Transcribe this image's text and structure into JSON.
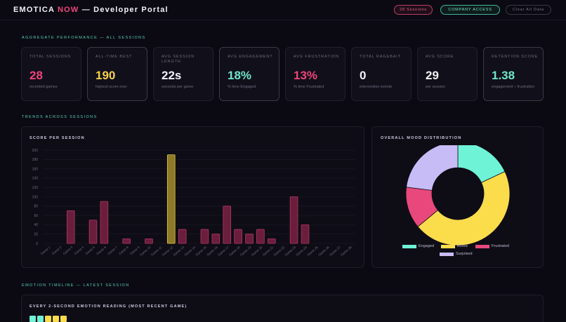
{
  "header": {
    "brand_prefix": "EMOTICA",
    "brand_highlight": "NOW",
    "brand_suffix": " — Developer Portal",
    "sessions_pill": "28 Sessions",
    "access_button": "COMPANY ACCESS",
    "clear_button": "Clear All Data"
  },
  "aggregate": {
    "section_title": "AGGREGATE PERFORMANCE — ALL SESSIONS",
    "stats": [
      {
        "label": "TOTAL SESSIONS",
        "value": "28",
        "sub": "recorded games",
        "color": "#f0447a"
      },
      {
        "label": "ALL-TIME BEST",
        "value": "190",
        "sub": "highest score ever",
        "color": "#f6d04d"
      },
      {
        "label": "AVG SESSION LENGTH",
        "value": "22s",
        "sub": "seconds per game",
        "color": "#f2f0f7"
      },
      {
        "label": "AVG ENGAGEMENT",
        "value": "18%",
        "sub": "% time Engaged",
        "color": "#6fe6cc"
      },
      {
        "label": "AVG FRUSTRATION",
        "value": "13%",
        "sub": "% time Frustrated",
        "color": "#f0447a"
      },
      {
        "label": "TOTAL RAGEBAIT",
        "value": "0",
        "sub": "intervention events",
        "color": "#f2f0f7"
      },
      {
        "label": "AVG SCORE",
        "value": "29",
        "sub": "per session",
        "color": "#f2f0f7"
      },
      {
        "label": "RETENTION SCORE",
        "value": "1.38",
        "sub": "engagement ÷ frustration",
        "color": "#6fe6cc"
      }
    ]
  },
  "trends": {
    "section_title": "TRENDS ACROSS SESSIONS",
    "score_title": "SCORE PER SESSION",
    "mood_title": "OVERALL MOOD DISTRIBUTION"
  },
  "chart_data": [
    {
      "type": "bar",
      "title": "SCORE PER SESSION",
      "categories": [
        "Game 1",
        "Game 2",
        "Game 3",
        "Game 4",
        "Game 5",
        "Game 6",
        "Game 7",
        "Game 8",
        "Game 9",
        "Game 10",
        "Game 11",
        "Game 12",
        "Game 13",
        "Game 14",
        "Game 15",
        "Game 16",
        "Game 17",
        "Game 18",
        "Game 19",
        "Game 20",
        "Game 21",
        "Game 22",
        "Game 23",
        "Game 24",
        "Game 25",
        "Game 26",
        "Game 27",
        "Game 28"
      ],
      "values": [
        0,
        0,
        70,
        0,
        50,
        90,
        0,
        10,
        0,
        10,
        0,
        190,
        30,
        0,
        30,
        20,
        80,
        30,
        20,
        30,
        10,
        0,
        100,
        40,
        0,
        0,
        0,
        0
      ],
      "highlight_index": 11,
      "yticks": [
        0,
        20,
        40,
        60,
        80,
        100,
        120,
        140,
        160,
        180,
        200
      ],
      "ylim": [
        0,
        200
      ],
      "colors": {
        "bar": "#6a1e3c",
        "bar_edge": "#b23565",
        "best": "#8c7a28",
        "best_edge": "#e5c345"
      }
    },
    {
      "type": "pie",
      "title": "OVERALL MOOD DISTRIBUTION",
      "categories": [
        "Engaged",
        "Bored",
        "Frustrated",
        "Surprised"
      ],
      "values": [
        18,
        46,
        13,
        23
      ],
      "colors": [
        "#6ff3d6",
        "#fbdc4b",
        "#e9487c",
        "#c8bcf6"
      ]
    }
  ],
  "timeline": {
    "section_title": "EMOTION TIMELINE — LATEST SESSION",
    "panel_title": "EVERY 2-SECOND EMOTION READING (MOST RECENT GAME)",
    "readings": [
      "Engaged",
      "Engaged",
      "Bored",
      "Bored",
      "Bored"
    ],
    "colors": {
      "Engaged": "#6ff3d6",
      "Bored": "#fbdc4b",
      "Frustrated": "#e9487c",
      "Surprised": "#c8bcf6"
    }
  }
}
